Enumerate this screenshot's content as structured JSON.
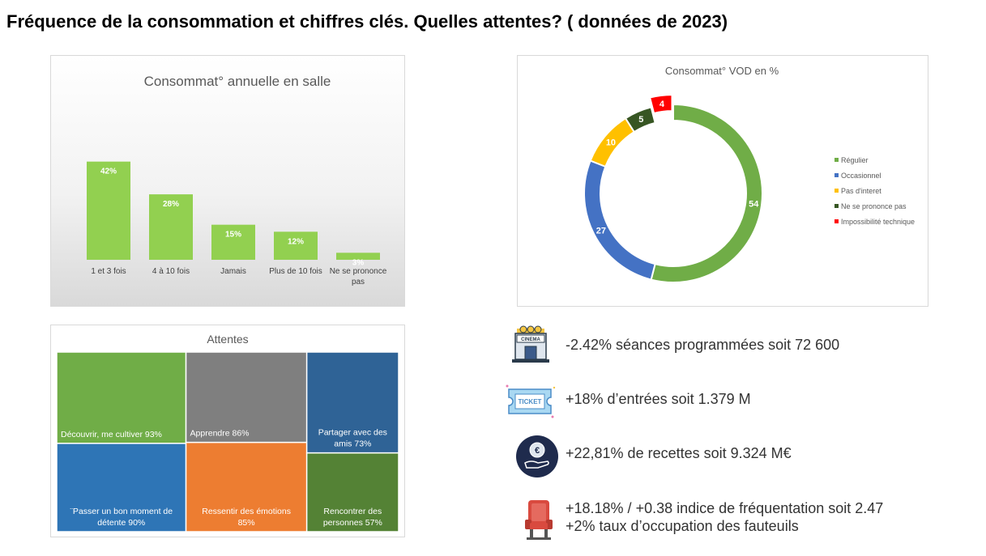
{
  "title": "Fréquence de la consommation et chiffres clés. Quelles attentes? ( données de 2023)",
  "chart_data": [
    {
      "type": "bar",
      "title": "Consommat° annuelle en salle",
      "categories": [
        "1 et 3 fois",
        "4 à 10 fois",
        "Jamais",
        "Plus de 10 fois",
        "Ne se prononce pas"
      ],
      "values": [
        42,
        28,
        15,
        12,
        3
      ],
      "value_labels": [
        "42%",
        "28%",
        "15%",
        "12%",
        "3%"
      ],
      "ylim": [
        0,
        45
      ],
      "grid": false,
      "color": "#92d050"
    },
    {
      "type": "pie",
      "title": "Consommat° VOD en %",
      "style": "donut",
      "labels": [
        "Régulier",
        "Occasionnel",
        "Pas d'interet",
        "Ne se prononce pas",
        "Impossibilité technique"
      ],
      "values": [
        54,
        27,
        10,
        5,
        4
      ],
      "colors": [
        "#70ad47",
        "#4472c4",
        "#ffc000",
        "#375623",
        "#ff0000"
      ],
      "exploded": "Impossibilité technique",
      "legend_position": "right"
    },
    {
      "type": "treemap",
      "title": "Attentes",
      "items": [
        {
          "label": "Découvrir, me cultiver 93%",
          "value": 93,
          "color": "#70ad47"
        },
        {
          "label": "¨Passer un bon moment de détente 90%",
          "value": 90,
          "color": "#2e75b6"
        },
        {
          "label": "Apprendre  86%",
          "value": 86,
          "color": "#7f7f7f"
        },
        {
          "label": "Ressentir des émotions 85%",
          "value": 85,
          "color": "#ed7d31"
        },
        {
          "label": "Partager avec des amis 73%",
          "value": 73,
          "color": "#2f6396"
        },
        {
          "label": "Rencontrer des personnes 57%",
          "value": 57,
          "color": "#548235"
        }
      ]
    }
  ],
  "stats": [
    {
      "icon": "cinema-building-icon",
      "text": "-2.42% séances programmées soit 72 600"
    },
    {
      "icon": "ticket-icon",
      "text": "+18% d’entrées soit 1.379 M"
    },
    {
      "icon": "euro-coin-hand-icon",
      "text": "+22,81% de recettes soit 9.324 M€"
    },
    {
      "icon": "cinema-seat-icon",
      "text": "+18.18% / +0.38 indice de fréquentation soit 2.47",
      "text2": "+2% taux d’occupation des fauteuils"
    }
  ]
}
